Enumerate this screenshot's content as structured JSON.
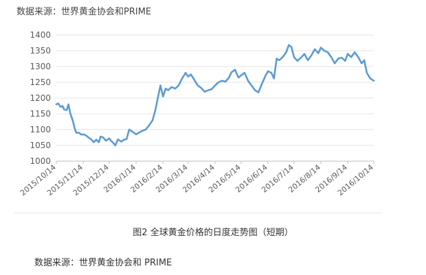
{
  "header": {
    "source": "数据来源：世界黄金协会和PRIME"
  },
  "caption": "图2 全球黄金价格的日度走势图（短期）",
  "footer": {
    "source": "数据来源：世界黄金协会和 PRIME"
  },
  "chart_data": {
    "type": "line",
    "title": "",
    "xlabel": "",
    "ylabel": "",
    "ylim": [
      1000,
      1400
    ],
    "yticks": [
      1000,
      1050,
      1100,
      1150,
      1200,
      1250,
      1300,
      1350,
      1400
    ],
    "xticks": [
      "2015/10/14",
      "2015/11/14",
      "2015/12/14",
      "2016/1/14",
      "2016/2/14",
      "2016/3/14",
      "2016/4/14",
      "2016/5/14",
      "2016/6/14",
      "2016/7/14",
      "2016/8/14",
      "2016/9/14",
      "2016/10/14"
    ],
    "grid": "horizontal",
    "legend": "none",
    "color": "#5b9bd5",
    "series": [
      {
        "x": [
          "2015/10/14",
          "2015/10/16",
          "2015/10/19",
          "2015/10/21",
          "2015/10/23",
          "2015/10/26",
          "2015/10/28",
          "2015/10/30",
          "2015/11/2",
          "2015/11/4",
          "2015/11/6",
          "2015/11/9",
          "2015/11/12",
          "2015/11/14",
          "2015/11/17",
          "2015/11/20",
          "2015/11/23",
          "2015/11/26",
          "2015/11/29",
          "2015/12/2",
          "2015/12/4",
          "2015/12/7",
          "2015/12/10",
          "2015/12/14",
          "2015/12/16",
          "2015/12/18",
          "2015/12/21",
          "2015/12/24",
          "2015/12/28",
          "2015/12/31",
          "2016/1/3",
          "2016/1/6",
          "2016/1/9",
          "2016/1/14",
          "2016/1/17",
          "2016/1/21",
          "2016/1/25",
          "2016/1/29",
          "2016/2/2",
          "2016/2/5",
          "2016/2/8",
          "2016/2/11",
          "2016/2/14",
          "2016/2/17",
          "2016/2/20",
          "2016/2/24",
          "2016/2/28",
          "2016/3/3",
          "2016/3/7",
          "2016/3/11",
          "2016/3/14",
          "2016/3/17",
          "2016/3/21",
          "2016/3/25",
          "2016/3/29",
          "2016/4/2",
          "2016/4/6",
          "2016/4/10",
          "2016/4/14",
          "2016/4/18",
          "2016/4/22",
          "2016/4/26",
          "2016/4/30",
          "2016/5/3",
          "2016/5/7",
          "2016/5/11",
          "2016/5/14",
          "2016/5/18",
          "2016/5/22",
          "2016/5/26",
          "2016/5/30",
          "2016/6/3",
          "2016/6/7",
          "2016/6/11",
          "2016/6/14",
          "2016/6/18",
          "2016/6/21",
          "2016/6/24",
          "2016/6/27",
          "2016/7/1",
          "2016/7/5",
          "2016/7/8",
          "2016/7/11",
          "2016/7/14",
          "2016/7/18",
          "2016/7/22",
          "2016/7/26",
          "2016/7/30",
          "2016/8/3",
          "2016/8/7",
          "2016/8/11",
          "2016/8/14",
          "2016/8/18",
          "2016/8/22",
          "2016/8/26",
          "2016/8/30",
          "2016/9/3",
          "2016/9/7",
          "2016/9/11",
          "2016/9/14",
          "2016/9/18",
          "2016/9/22",
          "2016/9/26",
          "2016/9/30",
          "2016/10/3",
          "2016/10/6",
          "2016/10/10",
          "2016/10/14"
        ],
        "y": [
          1180,
          1183,
          1172,
          1175,
          1164,
          1162,
          1180,
          1152,
          1128,
          1105,
          1090,
          1090,
          1084,
          1085,
          1082,
          1075,
          1070,
          1060,
          1068,
          1060,
          1078,
          1075,
          1065,
          1072,
          1065,
          1060,
          1050,
          1069,
          1062,
          1068,
          1070,
          1100,
          1095,
          1085,
          1090,
          1096,
          1100,
          1114,
          1130,
          1160,
          1200,
          1240,
          1205,
          1230,
          1225,
          1235,
          1230,
          1240,
          1262,
          1280,
          1268,
          1275,
          1258,
          1240,
          1232,
          1220,
          1225,
          1228,
          1240,
          1250,
          1255,
          1252,
          1265,
          1282,
          1290,
          1265,
          1272,
          1280,
          1255,
          1240,
          1225,
          1218,
          1245,
          1270,
          1285,
          1280,
          1262,
          1325,
          1320,
          1330,
          1345,
          1368,
          1362,
          1330,
          1318,
          1328,
          1340,
          1320,
          1335,
          1355,
          1342,
          1360,
          1350,
          1345,
          1330,
          1310,
          1325,
          1328,
          1318,
          1340,
          1330,
          1345,
          1330,
          1310,
          1320,
          1280,
          1262,
          1255
        ]
      }
    ]
  }
}
